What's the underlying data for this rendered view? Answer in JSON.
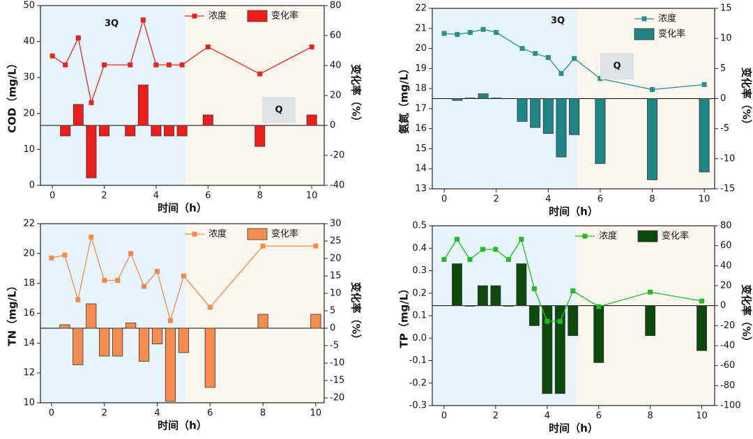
{
  "chart_data": [
    {
      "type": "bar-line",
      "ylabel": "COD（mg/L）",
      "y2label": "变化率（%）",
      "xlabel": "时间（h）",
      "x": [
        0,
        0.5,
        1,
        1.5,
        2,
        3,
        3.5,
        4,
        4.5,
        5,
        6,
        8,
        10
      ],
      "series": [
        {
          "name": "浓度",
          "kind": "line",
          "color": "#e8231f",
          "values": [
            36,
            33.5,
            41,
            23,
            33.5,
            33.5,
            46,
            33.5,
            33.5,
            33.5,
            38.5,
            31,
            38.5
          ]
        },
        {
          "name": "变化率",
          "kind": "bar",
          "axis": "y2",
          "color": "#ee1c1c",
          "values": [
            null,
            -7,
            14,
            -35,
            -7,
            -7,
            27,
            -7,
            -7,
            -7,
            7,
            -14,
            7
          ]
        }
      ],
      "xlim": [
        -0.46,
        10.48
      ],
      "xticks": [
        0,
        2,
        4,
        6,
        8,
        10
      ],
      "ylim": [
        0,
        50
      ],
      "yticks": [
        0,
        10,
        20,
        30,
        40,
        50
      ],
      "y2lim": [
        -40,
        80
      ],
      "y2ticks": [
        -40,
        -20,
        0,
        20,
        40,
        60,
        80
      ],
      "regions": [
        {
          "from": -0.46,
          "to": 5.13,
          "color": "#e8f4fb"
        },
        {
          "from": 5.13,
          "to": 10.48,
          "color": "#fbf7ee"
        }
      ],
      "annotations": [
        "3Q",
        "Q"
      ],
      "legend": "upper right",
      "legend_direction": "horizontal"
    },
    {
      "type": "bar-line",
      "ylabel": "氨氮（mg/L）",
      "y2label": "变化率（%）",
      "xlabel": "时间（h）",
      "x": [
        0,
        0.5,
        1,
        1.5,
        2,
        3,
        3.5,
        4,
        4.5,
        5,
        6,
        8,
        10
      ],
      "series": [
        {
          "name": "浓度",
          "kind": "line",
          "color": "#2a8f8f",
          "values": [
            20.75,
            20.7,
            20.8,
            20.95,
            20.8,
            20.0,
            19.75,
            19.55,
            18.75,
            19.5,
            18.5,
            17.95,
            18.2
          ]
        },
        {
          "name": "变化率",
          "kind": "bar",
          "axis": "y2",
          "color": "#1f8585",
          "values": [
            null,
            -0.3,
            0.1,
            0.8,
            0.1,
            -3.8,
            -4.8,
            -5.8,
            -9.7,
            -6,
            -10.8,
            -13.5,
            -12.2
          ]
        }
      ],
      "xlim": [
        -0.46,
        10.4
      ],
      "xticks": [
        0,
        2,
        4,
        6,
        8,
        10
      ],
      "ylim": [
        13,
        22
      ],
      "yticks": [
        13,
        14,
        15,
        16,
        17,
        18,
        19,
        20,
        21,
        22
      ],
      "y2lim": [
        -15,
        15
      ],
      "y2ticks": [
        -15,
        -10,
        -5,
        0,
        5,
        10,
        15
      ],
      "regions": [
        {
          "from": -0.46,
          "to": 5.12,
          "color": "#e8f4fb"
        },
        {
          "from": 5.12,
          "to": 10.4,
          "color": "#fbf7ee"
        }
      ],
      "annotations": [
        "3Q",
        "Q"
      ],
      "legend": "upper right",
      "legend_direction": "vertical"
    },
    {
      "type": "bar-line",
      "ylabel": "TN（mg/L）",
      "y2label": "变化率（%）",
      "xlabel": "时间（h）",
      "x": [
        0,
        0.5,
        1,
        1.5,
        2,
        2.5,
        3,
        3.5,
        4,
        4.5,
        5,
        6,
        8,
        10
      ],
      "series": [
        {
          "name": "浓度",
          "kind": "line",
          "color": "#f5884a",
          "values": [
            19.7,
            19.9,
            16.9,
            21.1,
            18.2,
            18.2,
            20,
            17.8,
            18.8,
            15.5,
            18.5,
            16.4,
            20.5,
            20.5
          ]
        },
        {
          "name": "变化率",
          "kind": "bar",
          "axis": "y2",
          "color": "#f68d4e",
          "values": [
            null,
            1,
            -10.5,
            7,
            -8,
            -8,
            1.5,
            -9.5,
            -4.5,
            -21,
            -7,
            -17,
            4,
            4
          ]
        }
      ],
      "xlim": [
        -0.42,
        10.32
      ],
      "xticks": [
        0,
        2,
        4,
        6,
        8,
        10
      ],
      "ylim": [
        10,
        22
      ],
      "yticks": [
        10,
        12,
        14,
        16,
        18,
        20,
        22
      ],
      "y2lim": [
        -21.4,
        30
      ],
      "y2ticks": [
        -20,
        -15,
        -10,
        -5,
        0,
        5,
        10,
        15,
        20,
        25,
        30
      ],
      "regions": [
        {
          "from": -0.42,
          "to": 5.07,
          "color": "#e8f4fb"
        },
        {
          "from": 5.07,
          "to": 10.32,
          "color": "#fbf7ee"
        }
      ],
      "annotations": [],
      "legend": "upper right",
      "legend_direction": "horizontal"
    },
    {
      "type": "bar-line",
      "ylabel": "TP（mg/L）",
      "y2label": "变化率（%）",
      "xlabel": "时间（h）",
      "x": [
        0,
        0.5,
        1,
        1.5,
        2,
        2.5,
        3,
        3.5,
        4,
        4.5,
        5,
        6,
        8,
        10
      ],
      "series": [
        {
          "name": "浓度",
          "kind": "line",
          "color": "#22bb22",
          "values": [
            0.35,
            0.44,
            0.35,
            0.395,
            0.395,
            0.35,
            0.44,
            0.22,
            0.075,
            0.075,
            0.21,
            0.14,
            0.205,
            0.165
          ]
        },
        {
          "name": "变化率",
          "kind": "bar",
          "axis": "y2",
          "color": "#0c4a0c",
          "values": [
            null,
            42,
            0,
            20,
            20,
            0,
            42,
            -20,
            -88,
            -88,
            -30,
            -57,
            -30,
            -45
          ]
        }
      ],
      "xlim": [
        -0.46,
        10.5
      ],
      "xticks": [
        0,
        2,
        4,
        6,
        8,
        10
      ],
      "ylim": [
        -0.3,
        0.5
      ],
      "yticks": [
        -0.3,
        -0.2,
        -0.1,
        {
          "value": 0,
          "label": "0.0"
        },
        0.1,
        0.2,
        0.3,
        0.4,
        0.5
      ],
      "y2lim": [
        -100,
        80
      ],
      "y2ticks": [
        -100,
        -80,
        -60,
        -40,
        -20,
        0,
        20,
        40,
        60,
        80
      ],
      "regions": [
        {
          "from": -0.46,
          "to": 5.15,
          "color": "#e8f4fb"
        },
        {
          "from": 5.15,
          "to": 10.5,
          "color": "#fbf7ee"
        }
      ],
      "annotations": [],
      "legend": "upper right",
      "legend_direction": "horizontal"
    }
  ]
}
